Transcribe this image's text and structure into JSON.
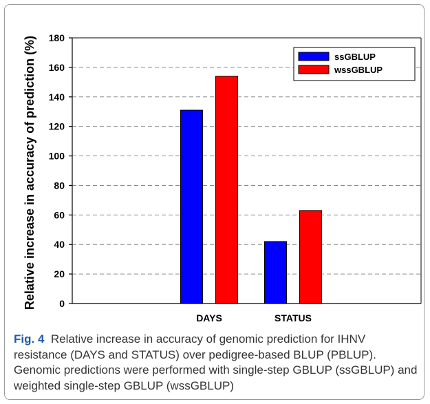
{
  "caption": {
    "label": "Fig. 4",
    "text": "Relative increase in accuracy of genomic prediction for IHNV resistance (DAYS and STATUS) over pedigree-based BLUP (PBLUP). Genomic predictions were performed with single-step GBLUP (ssGBLUP) and weighted single-step GBLUP (wssGBLUP)"
  },
  "colors": {
    "ssGBLUP": "#0000ff",
    "wssGBLUP": "#ff0000",
    "grid": "#8a8a8a",
    "caption_label": "#1e5aa8"
  },
  "chart_data": {
    "type": "bar",
    "categories": [
      "DAYS",
      "STATUS"
    ],
    "series": [
      {
        "name": "ssGBLUP",
        "values": [
          131,
          42
        ]
      },
      {
        "name": "wssGBLUP",
        "values": [
          154,
          63
        ]
      }
    ],
    "xlabel": "",
    "ylabel": "Relative increase in accuracy of prediction (%)",
    "ylim": [
      0,
      180
    ],
    "yticks": [
      0,
      20,
      40,
      60,
      80,
      100,
      120,
      140,
      160,
      180
    ],
    "grid": "dashed horizontal",
    "legend_position": "top-right"
  }
}
